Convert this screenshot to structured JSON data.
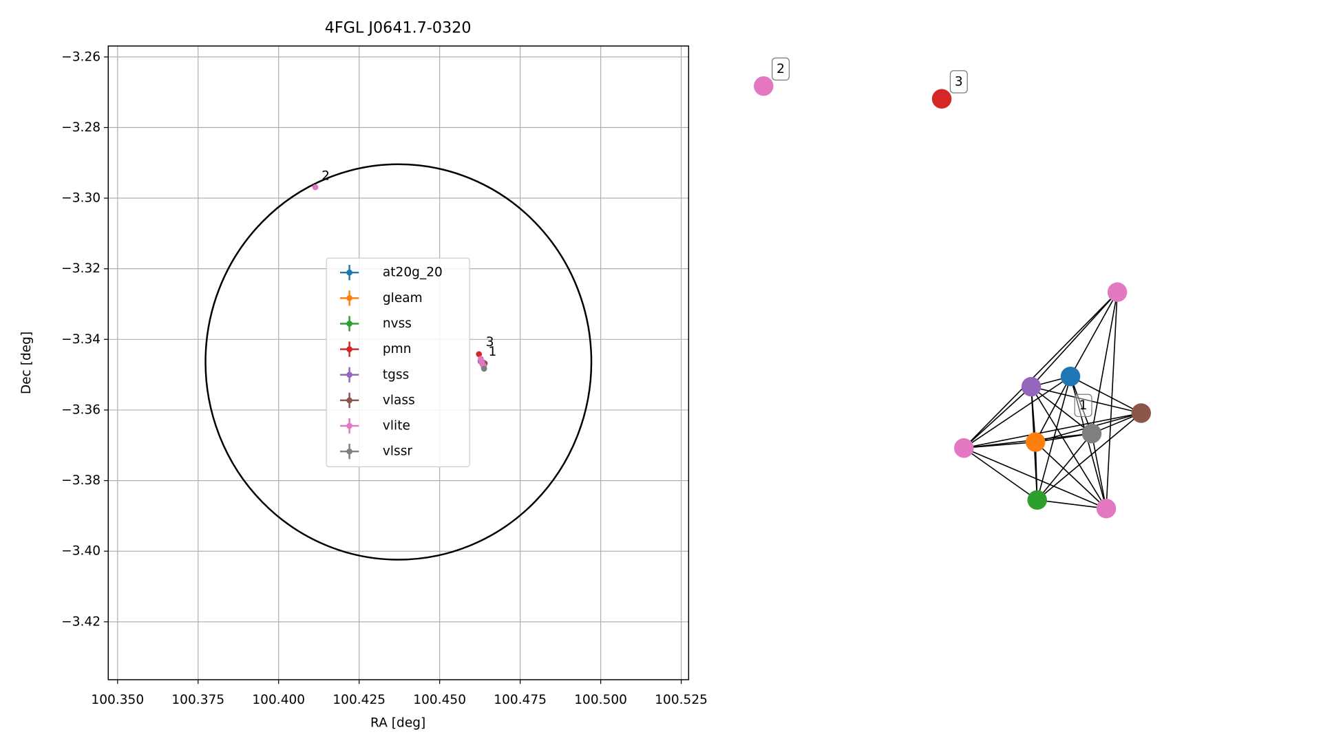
{
  "chart_data": [
    {
      "type": "scatter",
      "title": "4FGL J0641.7-0320",
      "xlabel": "RA [deg]",
      "ylabel": "Dec [deg]",
      "xlim": [
        100.3471,
        100.5273
      ],
      "ylim": [
        -3.4364,
        -3.2569
      ],
      "grid": true,
      "xticks": [
        {
          "value": 100.35,
          "label": "100.350"
        },
        100.375,
        {
          "value": 100.4,
          "label": "100.400"
        },
        100.425,
        {
          "value": 100.45,
          "label": "100.450"
        },
        100.475,
        {
          "value": 100.5,
          "label": "100.500"
        },
        100.525
      ],
      "yticks": [
        {
          "value": -3.26,
          "label": "−3.26"
        },
        {
          "value": -3.28,
          "label": "−3.28"
        },
        {
          "value": -3.3,
          "label": "−3.30"
        },
        {
          "value": -3.32,
          "label": "−3.32"
        },
        {
          "value": -3.34,
          "label": "−3.34"
        },
        {
          "value": -3.36,
          "label": "−3.36"
        },
        {
          "value": -3.38,
          "label": "−3.38"
        },
        {
          "value": -3.4,
          "label": "−3.40"
        },
        {
          "value": -3.42,
          "label": "−3.42"
        }
      ],
      "circle": {
        "center": [
          100.4372,
          -3.3464
        ],
        "radius_x": 0.0599,
        "radius_y": 0.056,
        "color": "#000000"
      },
      "legend": "center",
      "series": [
        {
          "name": "at20g_20",
          "color": "#1f77b4",
          "x": [
            100.4635
          ],
          "y": [
            -3.3465
          ]
        },
        {
          "name": "gleam",
          "color": "#ff7f0e",
          "x": [
            100.4633
          ],
          "y": [
            -3.347
          ]
        },
        {
          "name": "nvss",
          "color": "#2ca02c",
          "x": [
            100.4637
          ],
          "y": [
            -3.3478
          ]
        },
        {
          "name": "pmn",
          "color": "#d62728",
          "x": [
            100.4622
          ],
          "y": [
            -3.3442
          ]
        },
        {
          "name": "tgss",
          "color": "#9467bd",
          "x": [
            100.4627
          ],
          "y": [
            -3.3462
          ]
        },
        {
          "name": "vlass",
          "color": "#8c564b",
          "x": [
            100.464
          ],
          "y": [
            -3.3468
          ]
        },
        {
          "name": "vlite",
          "color": "#e377c2",
          "x": [
            100.4114,
            100.4628,
            100.4631,
            100.4636
          ],
          "y": [
            -3.2969,
            -3.3455,
            -3.3463,
            -3.3474
          ]
        },
        {
          "name": "vlssr",
          "color": "#7f7f7f",
          "x": [
            100.4638
          ],
          "y": [
            -3.3483
          ]
        }
      ],
      "annotations": [
        {
          "text": "2",
          "x": 100.4146,
          "y": -3.2938
        },
        {
          "text": "3",
          "x": 100.4656,
          "y": -3.3408
        },
        {
          "text": "1",
          "x": 100.4664,
          "y": -3.3435
        }
      ]
    },
    {
      "type": "network",
      "nodes": [
        {
          "color": "#e377c2",
          "label": "2"
        },
        {
          "color": "#d62728",
          "label": "3"
        },
        {
          "color": "#e377c2"
        },
        {
          "color": "#1f77b4"
        },
        {
          "color": "#9467bd"
        },
        {
          "color": "#8c564b"
        },
        {
          "color": "#7f7f7f",
          "label": "1"
        },
        {
          "color": "#ff7f0e"
        },
        {
          "color": "#e377c2"
        },
        {
          "color": "#2ca02c"
        },
        {
          "color": "#e377c2"
        }
      ],
      "edges": [
        [
          2,
          3
        ],
        [
          2,
          4
        ],
        [
          2,
          6
        ],
        [
          2,
          8
        ],
        [
          2,
          10
        ],
        [
          3,
          4
        ],
        [
          3,
          5
        ],
        [
          3,
          6
        ],
        [
          3,
          7
        ],
        [
          3,
          8
        ],
        [
          3,
          9
        ],
        [
          3,
          10
        ],
        [
          4,
          5
        ],
        [
          4,
          6
        ],
        [
          4,
          7
        ],
        [
          4,
          8
        ],
        [
          4,
          9
        ],
        [
          4,
          10
        ],
        [
          5,
          6
        ],
        [
          5,
          7
        ],
        [
          5,
          8
        ],
        [
          5,
          9
        ],
        [
          6,
          7
        ],
        [
          6,
          8
        ],
        [
          6,
          9
        ],
        [
          6,
          10
        ],
        [
          7,
          8
        ],
        [
          7,
          9
        ],
        [
          7,
          10
        ],
        [
          8,
          9
        ],
        [
          8,
          10
        ],
        [
          9,
          10
        ]
      ]
    }
  ]
}
